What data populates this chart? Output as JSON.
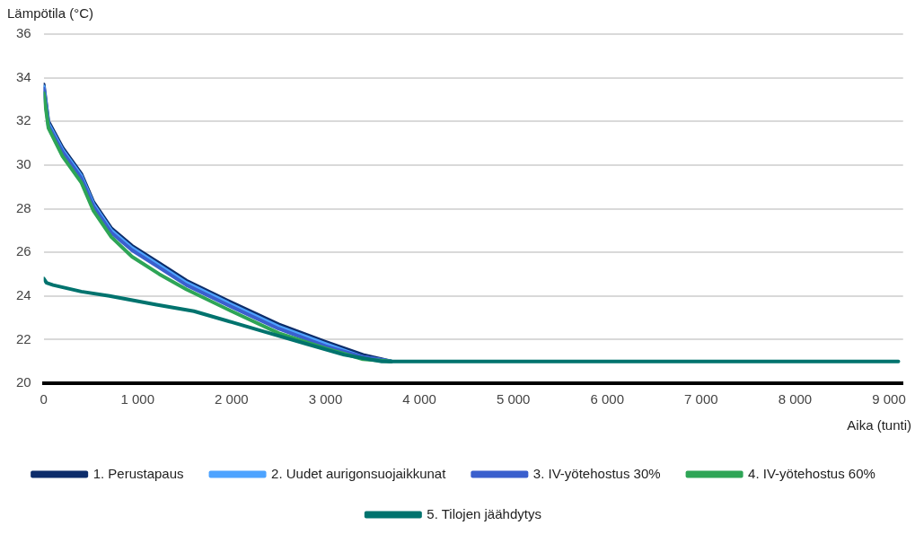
{
  "chart_data": {
    "type": "line",
    "ylabel": "Lämpötila (°C)",
    "xlabel": "Aika (tunti)",
    "xlim": [
      0,
      9150
    ],
    "xticks": [
      0,
      {
        "value": 1000,
        "label": "1 000"
      },
      {
        "value": 2000,
        "label": "2 000"
      },
      {
        "value": 3000,
        "label": "3 000"
      },
      {
        "value": 4000,
        "label": "4 000"
      },
      {
        "value": 5000,
        "label": "5 000"
      },
      {
        "value": 6000,
        "label": "6 000"
      },
      {
        "value": 7000,
        "label": "7 000"
      },
      {
        "value": 8000,
        "label": "8 000"
      },
      {
        "value": 9000,
        "label": "9 000"
      }
    ],
    "ylim": [
      20,
      36
    ],
    "yticks": [
      20,
      22,
      24,
      26,
      28,
      30,
      32,
      34,
      36
    ],
    "grid": "y",
    "legend": "bottom",
    "marker": "none",
    "line_style": "solid",
    "series": [
      {
        "name": "1. Perustapaus",
        "color": "#0d2d6b",
        "x": [
          0,
          50,
          200,
          400,
          530,
          720,
          940,
          1230,
          1520,
          2000,
          2500,
          3000,
          3400,
          3700
        ],
        "values": [
          33.7,
          32,
          30.8,
          29.6,
          28.3,
          27.1,
          26.3,
          25.5,
          24.7,
          23.7,
          22.7,
          21.9,
          21.3,
          21
        ]
      },
      {
        "name": "2. Uudet aurigonsuojaikkunat",
        "color": "#4da3ff",
        "x": [
          0,
          50,
          200,
          400,
          530,
          720,
          940,
          1230,
          1520,
          2000,
          2500,
          3000,
          3400,
          3700
        ],
        "values": [
          33.6,
          31.9,
          30.7,
          29.5,
          28.2,
          27,
          26.2,
          25.4,
          24.6,
          23.6,
          22.6,
          21.8,
          21.2,
          21
        ]
      },
      {
        "name": "3. IV-yötehostus 30%",
        "color": "#3a5fcd",
        "x": [
          0,
          50,
          200,
          400,
          530,
          720,
          940,
          1230,
          1520,
          2000,
          2500,
          3000,
          3400,
          3700
        ],
        "values": [
          33.5,
          31.8,
          30.6,
          29.4,
          28.1,
          26.9,
          26.1,
          25.3,
          24.5,
          23.5,
          22.5,
          21.7,
          21.2,
          21
        ]
      },
      {
        "name": "4. IV-yötehostus 60%",
        "color": "#2ea556",
        "x": [
          0,
          50,
          200,
          400,
          530,
          720,
          940,
          1230,
          1520,
          2000,
          2500,
          3000,
          3400,
          3700
        ],
        "values": [
          33.3,
          31.7,
          30.4,
          29.2,
          27.9,
          26.7,
          25.8,
          25,
          24.3,
          23.3,
          22.3,
          21.6,
          21.1,
          21
        ]
      },
      {
        "name": "5. Tilojen jäähdytys",
        "color": "#00736e",
        "x": [
          0,
          30,
          100,
          400,
          700,
          1200,
          1600,
          2000,
          2400,
          2800,
          3200,
          3600,
          5000,
          9100
        ],
        "values": [
          24.8,
          24.6,
          24.5,
          24.2,
          24,
          23.6,
          23.3,
          22.8,
          22.3,
          21.8,
          21.3,
          21,
          21,
          21
        ]
      }
    ]
  }
}
